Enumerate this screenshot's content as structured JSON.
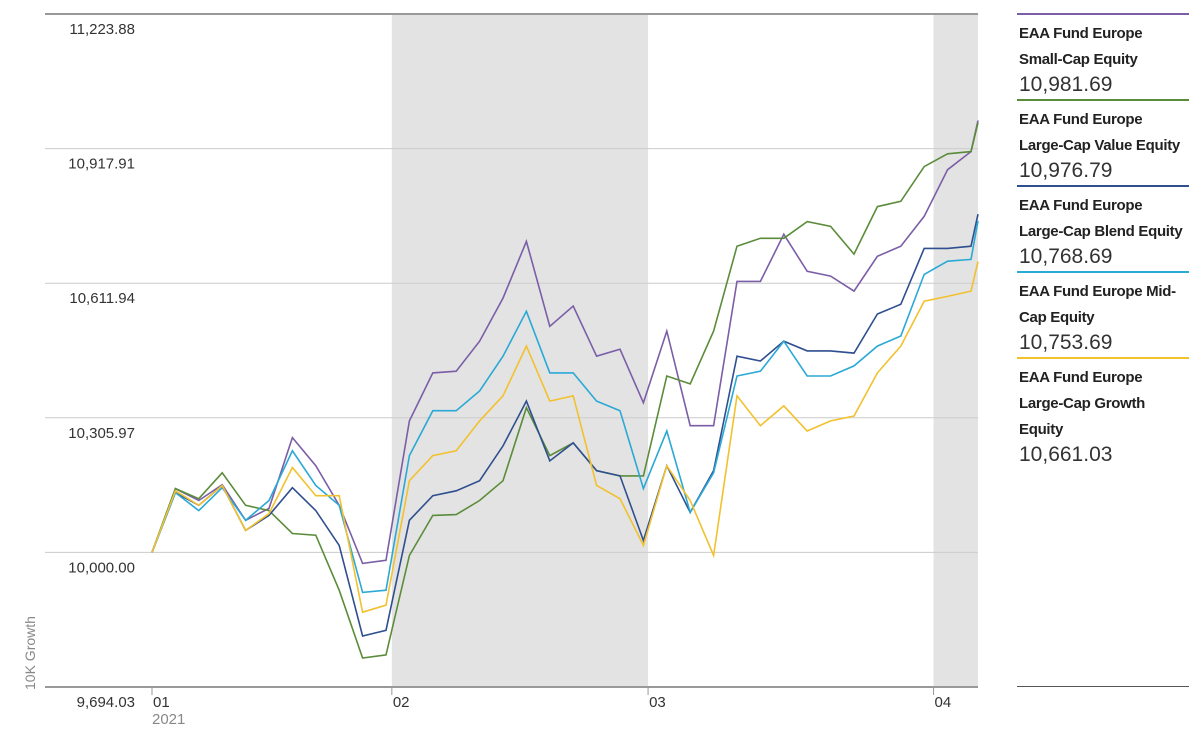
{
  "chart_data": {
    "type": "line",
    "y_axis_label": "10K Growth",
    "x_year_label": "2021",
    "x": [
      0,
      2,
      4,
      6,
      8,
      10,
      12,
      14,
      16,
      18,
      20,
      22,
      24,
      26,
      28,
      30,
      32,
      34,
      36,
      38,
      40,
      42,
      44,
      46,
      48,
      50,
      52,
      54,
      56,
      58,
      60,
      62,
      64,
      66,
      68,
      70,
      70.6
    ],
    "xlim": [
      0,
      70.6
    ],
    "xticks": [
      {
        "value": 0,
        "label": "01"
      },
      {
        "value": 20.5,
        "label": "02"
      },
      {
        "value": 42.4,
        "label": "03"
      },
      {
        "value": 66.8,
        "label": "04"
      }
    ],
    "ylim": [
      9694.03,
      11223.88
    ],
    "yticks": [
      {
        "value": 9694.03,
        "label": "9,694.03"
      },
      {
        "value": 10000,
        "label": "10,000.00"
      },
      {
        "value": 10305.97,
        "label": "10,305.97"
      },
      {
        "value": 10611.94,
        "label": "10,611.94"
      },
      {
        "value": 10917.91,
        "label": "10,917.91"
      },
      {
        "value": 11223.88,
        "label": "11,223.88"
      }
    ],
    "grid": true,
    "shade_alternate_months": true,
    "series": [
      {
        "name": "EAA Fund Europe Small-Cap Equity",
        "color": "#7b5ea7",
        "legend_value": "10,981.69",
        "values": [
          10000,
          10145,
          10118,
          10154,
          10073,
          10100,
          10261,
          10197,
          10107,
          9975,
          9982,
          10299,
          10408,
          10412,
          10480,
          10578,
          10707,
          10514,
          10560,
          10446,
          10462,
          10340,
          10503,
          10288,
          10288,
          10616,
          10616,
          10723,
          10639,
          10628,
          10594,
          10673,
          10696,
          10764,
          10870,
          10911,
          10981.69
        ]
      },
      {
        "name": "EAA Fund Europe Large-Cap Value Equity",
        "color": "#5b8c3a",
        "legend_value": "10,976.79",
        "values": [
          10000,
          10145,
          10122,
          10181,
          10107,
          10095,
          10043,
          10039,
          9914,
          9760,
          9767,
          9993,
          10084,
          10086,
          10118,
          10163,
          10329,
          10220,
          10249,
          10186,
          10174,
          10174,
          10401,
          10383,
          10503,
          10696,
          10714,
          10714,
          10752,
          10741,
          10678,
          10786,
          10798,
          10877,
          10906,
          10911,
          10976.79
        ]
      },
      {
        "name": "EAA Fund Europe Large-Cap Blend Equity",
        "color": "#2f4f8f",
        "legend_value": "10,768.69",
        "values": [
          10000,
          10136,
          10107,
          10152,
          10050,
          10084,
          10147,
          10095,
          10016,
          9810,
          9823,
          10073,
          10129,
          10140,
          10163,
          10242,
          10344,
          10208,
          10249,
          10186,
          10174,
          10027,
          10197,
          10091,
          10186,
          10446,
          10435,
          10480,
          10458,
          10458,
          10453,
          10542,
          10564,
          10691,
          10691,
          10696,
          10768.69
        ]
      },
      {
        "name": "EAA Fund Europe Mid-Cap Equity",
        "color": "#2aa9d6",
        "legend_value": "10,753.69",
        "values": [
          10000,
          10136,
          10095,
          10147,
          10073,
          10118,
          10231,
          10152,
          10107,
          9909,
          9914,
          10220,
          10322,
          10322,
          10367,
          10446,
          10548,
          10408,
          10408,
          10344,
          10322,
          10145,
          10276,
          10091,
          10181,
          10401,
          10412,
          10480,
          10401,
          10401,
          10424,
          10469,
          10492,
          10632,
          10662,
          10666,
          10753.69
        ]
      },
      {
        "name": "EAA Fund Europe Large-Cap Growth Equity",
        "color": "#f2c12e",
        "legend_value": "10,661.03",
        "values": [
          10000,
          10140,
          10107,
          10152,
          10050,
          10088,
          10193,
          10129,
          10129,
          9864,
          9880,
          10163,
          10220,
          10231,
          10299,
          10356,
          10469,
          10344,
          10356,
          10152,
          10122,
          10016,
          10197,
          10118,
          9993,
          10356,
          10288,
          10333,
          10276,
          10299,
          10310,
          10408,
          10469,
          10571,
          10582,
          10594,
          10661.03
        ]
      }
    ]
  }
}
